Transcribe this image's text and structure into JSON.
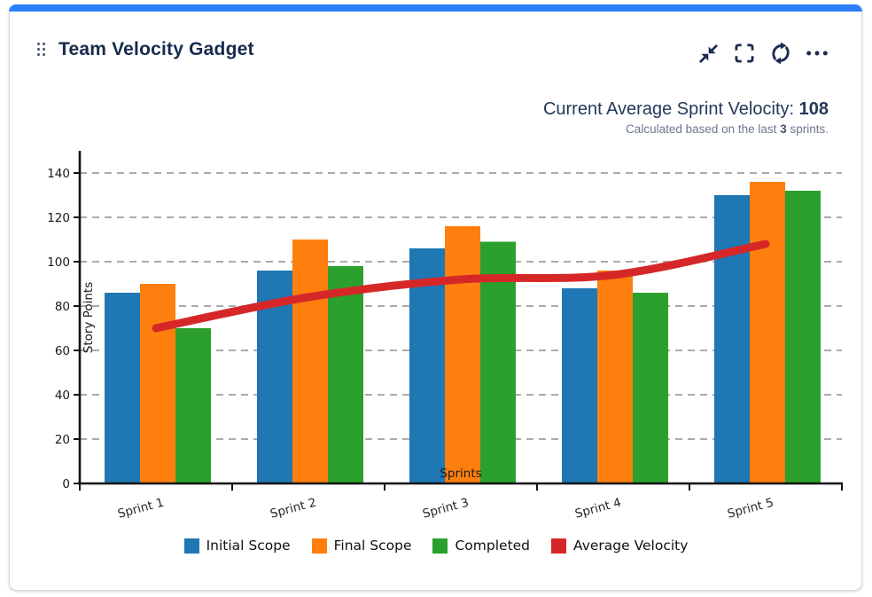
{
  "card": {
    "title": "Team Velocity Gadget",
    "accent_color": "#2d7ff9",
    "header_icons": [
      "drag-handle",
      "minimize",
      "fullscreen",
      "refresh",
      "more-options"
    ]
  },
  "stats": {
    "headline_label": "Current Average Sprint Velocity:",
    "headline_value": "108",
    "subtitle_prefix": "Calculated based on the last",
    "subtitle_value": "3",
    "subtitle_suffix": "sprints."
  },
  "chart_data": {
    "type": "bar",
    "categories": [
      "Sprint 1",
      "Sprint 2",
      "Sprint 3",
      "Sprint 4",
      "Sprint 5"
    ],
    "series": [
      {
        "name": "Initial Scope",
        "kind": "bar",
        "color": "#1f77b4",
        "values": [
          86,
          96,
          106,
          88,
          130
        ]
      },
      {
        "name": "Final Scope",
        "kind": "bar",
        "color": "#ff7f0e",
        "values": [
          90,
          110,
          116,
          96,
          136
        ]
      },
      {
        "name": "Completed",
        "kind": "bar",
        "color": "#2ca02c",
        "values": [
          70,
          98,
          109,
          86,
          132
        ]
      },
      {
        "name": "Average Velocity",
        "kind": "line",
        "color": "#d62728",
        "values": [
          70,
          84,
          92,
          94,
          108
        ]
      }
    ],
    "xlabel": "Sprints",
    "ylabel": "Story Points",
    "ylim": [
      0,
      140
    ],
    "ytick_step": 20,
    "grid": "horizontal-dashed",
    "grid_color": "#ababab",
    "axis_color": "#111111",
    "legend_position": "bottom"
  }
}
